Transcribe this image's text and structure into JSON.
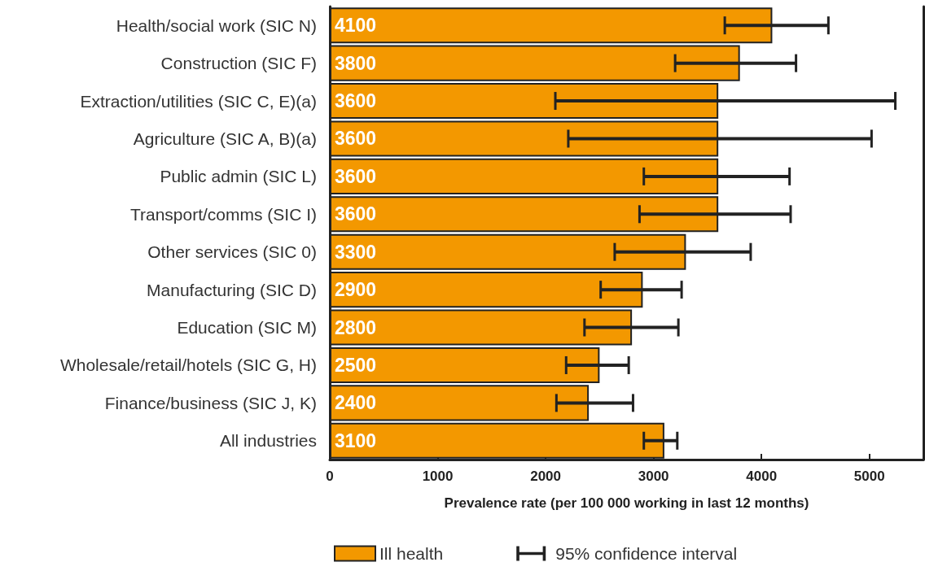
{
  "chart_data": {
    "type": "bar",
    "orientation": "horizontal",
    "xlabel": "Prevalence rate (per 100 000 working in last 12 months)",
    "categories": [
      "Health/social work (SIC N)",
      "Construction (SIC F)",
      "Extraction/utilities (SIC C, E)(a)",
      "Agriculture (SIC A, B)(a)",
      "Public admin (SIC L)",
      "Transport/comms (SIC I)",
      "Other services (SIC 0)",
      "Manufacturing (SIC D)",
      "Education (SIC M)",
      "Wholesale/retail/hotels (SIC G, H)",
      "Finance/business (SIC J, K)",
      "All industries"
    ],
    "series": [
      {
        "name": "Ill health",
        "color": "#f39800",
        "values": [
          4100,
          3800,
          3600,
          3600,
          3600,
          3600,
          3300,
          2900,
          2800,
          2500,
          2400,
          3100
        ],
        "errors": [
          [
            3660,
            4620
          ],
          [
            3200,
            4320
          ],
          [
            2090,
            5240
          ],
          [
            2210,
            5020
          ],
          [
            2910,
            4260
          ],
          [
            2870,
            4270
          ],
          [
            2640,
            3900
          ],
          [
            2510,
            3260
          ],
          [
            2360,
            3230
          ],
          [
            2190,
            2770
          ],
          [
            2100,
            2810
          ],
          [
            2910,
            3220
          ]
        ]
      }
    ],
    "annotations": [
      "95% confidence interval"
    ],
    "data_labels": true,
    "xlim": [
      0,
      5500
    ],
    "xticks": [
      0,
      1000,
      2000,
      3000,
      4000,
      5000
    ],
    "grid": false,
    "legend": "bottom"
  }
}
